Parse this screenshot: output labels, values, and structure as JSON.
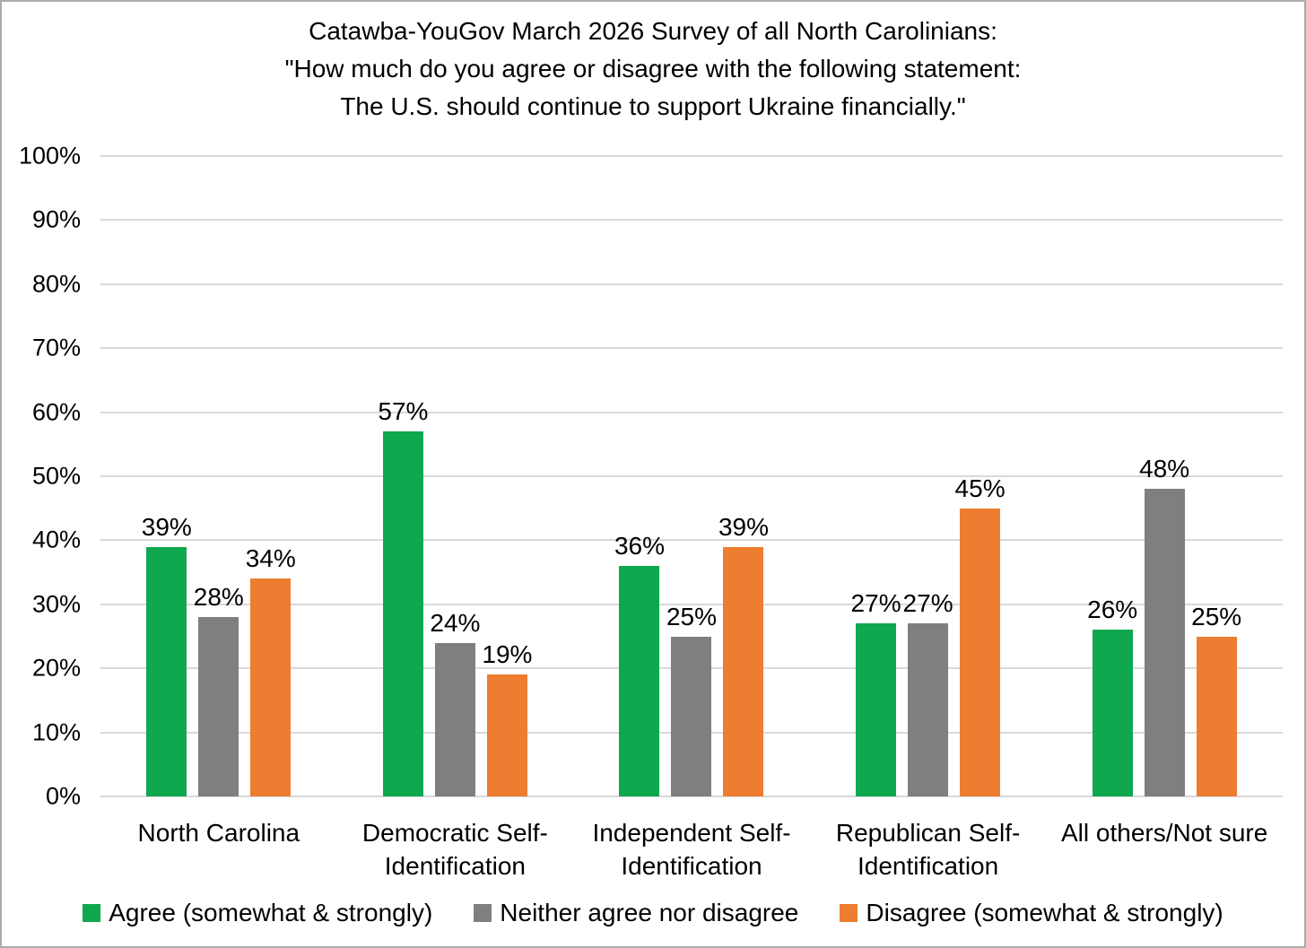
{
  "page": {
    "background": "#FFFFFF",
    "border_color": "#ABABAB",
    "text_color": "#000000"
  },
  "title": {
    "lines": [
      "Catawba-YouGov March 2026 Survey of all North Carolinians:",
      "\"How much do you agree or disagree with the following statement:",
      "The U.S. should continue to support Ukraine financially.\""
    ]
  },
  "chart_data": {
    "type": "bar",
    "title": "Catawba-YouGov March 2026 Survey of all North Carolinians: \"How much do you agree or disagree with the following statement: The U.S. should continue to support Ukraine financially.\"",
    "categories": [
      "North Carolina",
      "Democratic Self-Identification",
      "Independent Self-Identification",
      "Republican Self-Identification",
      "All others/Not sure"
    ],
    "series": [
      {
        "name": "Agree (somewhat & strongly)",
        "color": "#0FA84F",
        "values": [
          39,
          57,
          36,
          27,
          26
        ]
      },
      {
        "name": "Neither agree nor disagree",
        "color": "#7F7F7F",
        "values": [
          28,
          24,
          25,
          27,
          48
        ]
      },
      {
        "name": "Disagree (somewhat & strongly)",
        "color": "#ED7D31",
        "values": [
          34,
          19,
          39,
          45,
          25
        ]
      }
    ],
    "value_suffix": "%",
    "data_labels": true,
    "y_axis": {
      "min": 0,
      "max": 100,
      "step": 10,
      "tick_labels": [
        "0%",
        "10%",
        "20%",
        "30%",
        "40%",
        "50%",
        "60%",
        "70%",
        "80%",
        "90%",
        "100%"
      ]
    },
    "grid": true,
    "gridline_color": "#D9D9D9",
    "legend_position": "bottom"
  }
}
